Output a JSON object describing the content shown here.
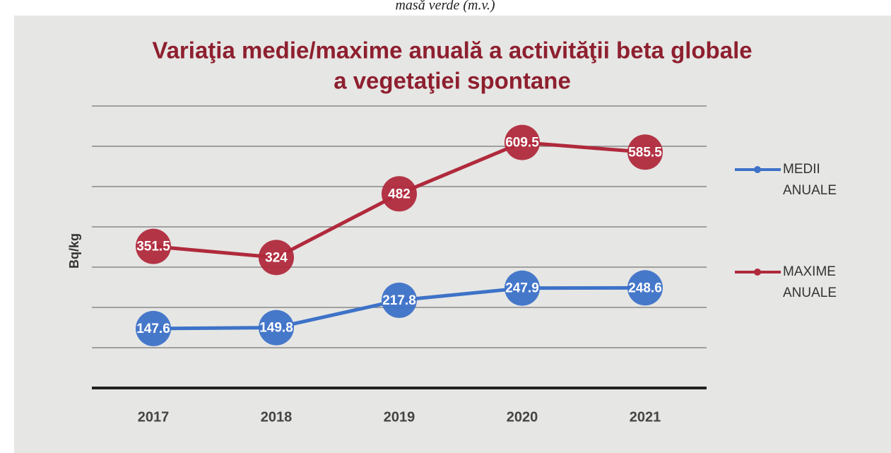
{
  "caption": "masă verde (m.v.)",
  "chart_data": {
    "type": "line",
    "title": "Variaţia medie/maxime anuală a activităţii beta globale",
    "subtitle": "a vegetaţiei spontane",
    "y_label": "Bq/kg",
    "categories": [
      "2017",
      "2018",
      "2019",
      "2020",
      "2021"
    ],
    "series": [
      {
        "name": "MEDII ANUALE",
        "color": "#3d72c8",
        "values": [
          147.6,
          149.8,
          217.8,
          247.9,
          248.6
        ]
      },
      {
        "name": "MAXIME ANUALE",
        "color": "#b02a3c",
        "values": [
          351.5,
          324,
          482,
          609.5,
          585.5
        ]
      }
    ],
    "ylim": [
      0,
      700
    ],
    "yticks": [
      0,
      100,
      200,
      300,
      400,
      500,
      600,
      700
    ],
    "grid": true,
    "legend": "right"
  }
}
